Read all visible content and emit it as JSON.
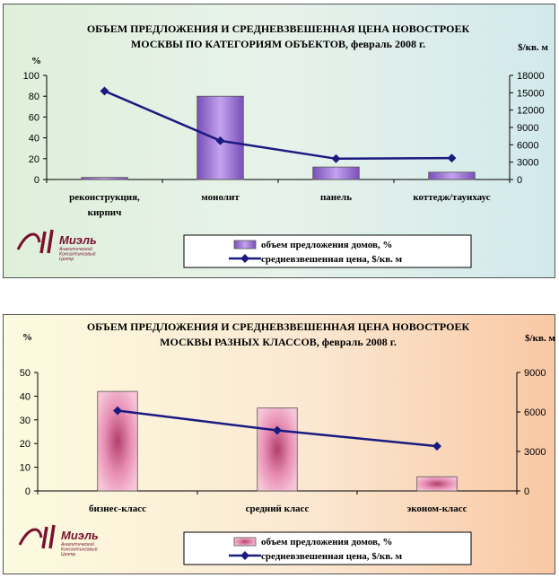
{
  "chart_data": [
    {
      "type": "bar",
      "title_lines": [
        "ОБЪЕМ ПРЕДЛОЖЕНИЯ И СРЕДНЕВЗВЕШЕННАЯ ЦЕНА НОВОСТРОЕК",
        "МОСКВЫ ПО КАТЕГОРИЯМ ОБЪЕКТОВ, февраль 2008 г."
      ],
      "ylabel": "%",
      "y2label": "$/кв. м",
      "ylim": [
        0,
        100
      ],
      "yticks": [
        "0",
        "20",
        "40",
        "60",
        "80",
        "100"
      ],
      "y2lim": [
        0,
        18000
      ],
      "y2ticks": [
        "0",
        "3000",
        "6000",
        "9000",
        "12000",
        "15000",
        "18000"
      ],
      "categories": [
        [
          "реконструкция,",
          "кирпич"
        ],
        [
          "монолит"
        ],
        [
          "панель"
        ],
        [
          "коттедж/таунхаус"
        ]
      ],
      "series": [
        {
          "name": "объем предложения домов, %",
          "kind": "bar",
          "axis": "left",
          "values": [
            2,
            80,
            12,
            7
          ],
          "color": "#9966cc"
        },
        {
          "name": "средневзвешенная цена, $/кв. м",
          "kind": "line",
          "axis": "right",
          "values": [
            15300,
            6700,
            3600,
            3700
          ],
          "color": "#1a1a80"
        }
      ],
      "legend_position": "bottom",
      "grid": false
    },
    {
      "type": "bar",
      "title_lines": [
        "ОБЪЕМ ПРЕДЛОЖЕНИЯ И СРЕДНЕВЗВЕШЕННАЯ ЦЕНА НОВОСТРОЕК",
        "МОСКВЫ РАЗНЫХ КЛАССОВ, февраль 2008 г."
      ],
      "ylabel": "%",
      "y2label": "$/кв. м",
      "ylim": [
        0,
        50
      ],
      "yticks": [
        "0",
        "10",
        "20",
        "30",
        "40",
        "50"
      ],
      "y2lim": [
        0,
        9000
      ],
      "y2ticks": [
        "0",
        "3000",
        "6000",
        "9000"
      ],
      "categories": [
        [
          "бизнес-класс"
        ],
        [
          "средний класс"
        ],
        [
          "эконом-класс"
        ]
      ],
      "series": [
        {
          "name": "объем предложения домов, %",
          "kind": "bar",
          "axis": "left",
          "values": [
            42,
            35,
            6
          ],
          "color": "#ee99bb"
        },
        {
          "name": "средневзвешенная цена, $/кв. м",
          "kind": "line",
          "axis": "right",
          "values": [
            6100,
            4600,
            3400
          ],
          "color": "#1a1a80"
        }
      ],
      "legend_position": "bottom",
      "grid": false
    }
  ],
  "logo": {
    "name": "Миэль",
    "subtitle": [
      "Аналитический",
      "Консалтинговый",
      "Центр"
    ],
    "color": "#7a1030"
  }
}
